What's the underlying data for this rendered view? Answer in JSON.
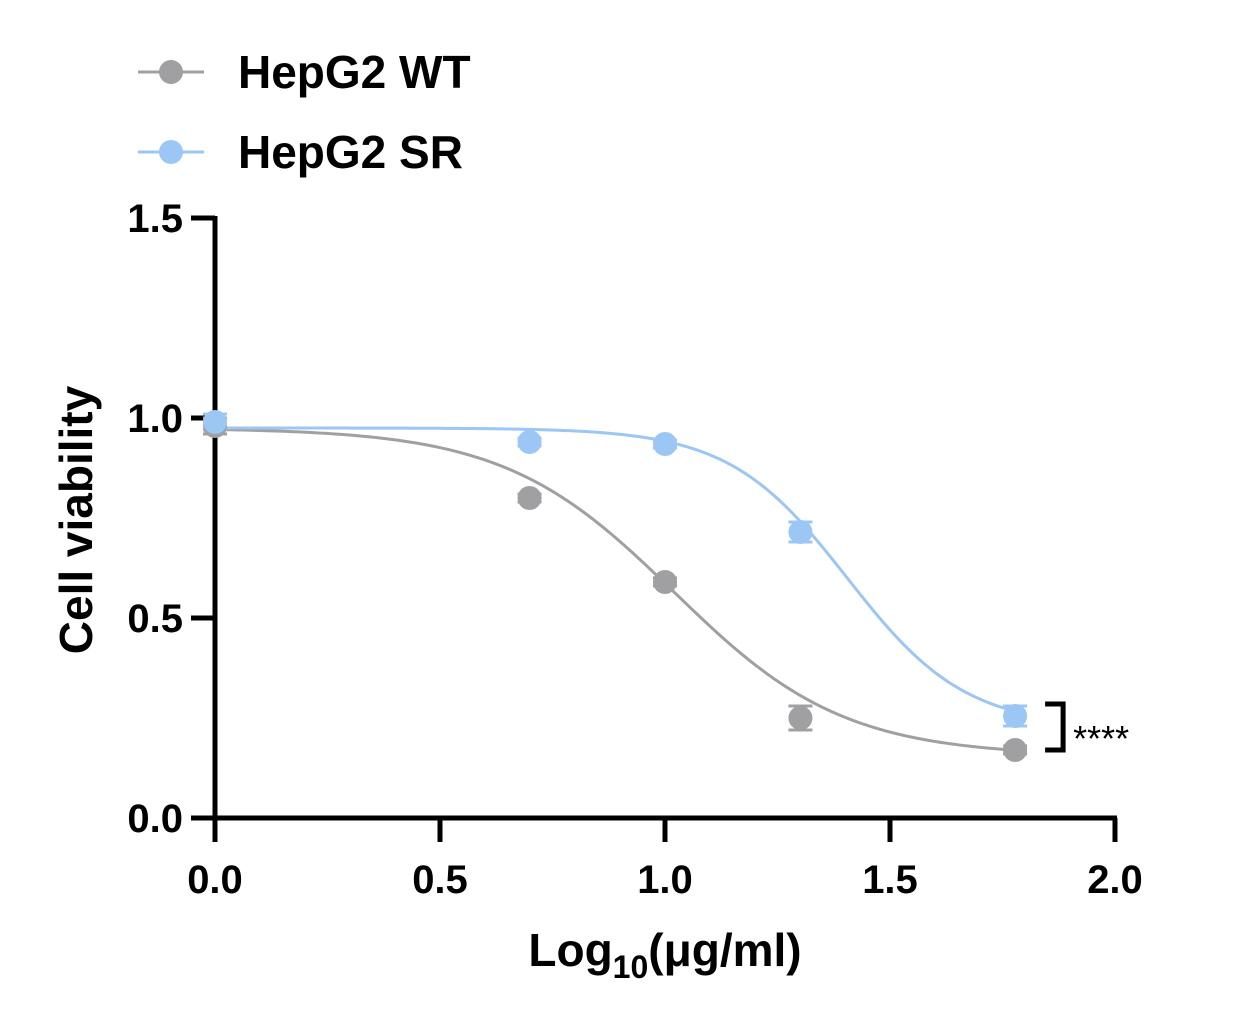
{
  "chart_data": {
    "type": "scatter",
    "title": "",
    "xlabel_main": "Log",
    "xlabel_sub": "10",
    "xlabel_rest": "(μg/ml)",
    "ylabel": "Cell viability",
    "xlim": [
      0,
      2
    ],
    "ylim": [
      0,
      1.5
    ],
    "x_ticks": [
      "0.0",
      "0.5",
      "1.0",
      "1.5",
      "2.0"
    ],
    "y_ticks": [
      "0.0",
      "0.5",
      "1.0",
      "1.5"
    ],
    "x_tick_values": [
      0,
      0.5,
      1.0,
      1.5,
      2.0
    ],
    "y_tick_values": [
      0,
      0.5,
      1.0,
      1.5
    ],
    "grid": false,
    "legend_position": "top-left",
    "series": [
      {
        "name": "HepG2 WT",
        "color": "#a0a0a2",
        "x": [
          0,
          0.699,
          1.0,
          1.301,
          1.778
        ],
        "y": [
          0.98,
          0.8,
          0.59,
          0.25,
          0.17
        ],
        "error": [
          0.02,
          0.01,
          0.01,
          0.03,
          0.01
        ],
        "fit": {
          "top": 0.975,
          "bottom": 0.155,
          "logEC50": 1.02,
          "hill": 2.3
        }
      },
      {
        "name": "HepG2 SR",
        "color": "#9cc6f3",
        "x": [
          0,
          0.699,
          1.0,
          1.301,
          1.778
        ],
        "y": [
          0.99,
          0.94,
          0.935,
          0.715,
          0.255
        ],
        "error": [
          0.02,
          0.01,
          0.01,
          0.025,
          0.025
        ],
        "fit": {
          "top": 0.975,
          "bottom": 0.225,
          "logEC50": 1.405,
          "hill": 3.3
        }
      }
    ],
    "annotation": {
      "text": "****",
      "bracket_y": [
        0.17,
        0.285
      ]
    }
  }
}
